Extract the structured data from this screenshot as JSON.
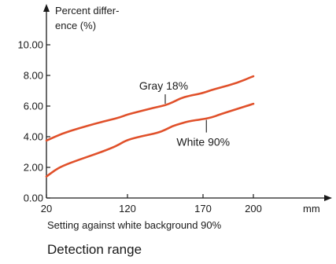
{
  "chart_data": {
    "type": "line",
    "title": "",
    "ylabel_lines": [
      "Percent differ-",
      "ence (%)"
    ],
    "xlabel": "Setting against white background 90%",
    "caption": "Detection range",
    "x_unit": "mm",
    "xlim": [
      20,
      200
    ],
    "ylim": [
      0,
      10
    ],
    "x_ticks": [
      {
        "value": 20,
        "label": "20"
      },
      {
        "value": 120,
        "label": "120"
      },
      {
        "value": 170,
        "label": "170"
      },
      {
        "value": 200,
        "label": "200"
      }
    ],
    "y_ticks": [
      {
        "value": 0,
        "label": "0.00"
      },
      {
        "value": 2,
        "label": "2.00"
      },
      {
        "value": 4,
        "label": "4.00"
      },
      {
        "value": 6,
        "label": "6.00"
      },
      {
        "value": 8,
        "label": "8.00"
      },
      {
        "value": 10,
        "label": "10.00"
      }
    ],
    "grid": false,
    "series_color": "#e0502a",
    "series": [
      {
        "name": "Gray 18%",
        "x": [
          20,
          40,
          60,
          80,
          100,
          110,
          120,
          130,
          140,
          145,
          150,
          155,
          160,
          170,
          175,
          180,
          190,
          200
        ],
        "y": [
          3.75,
          4.22,
          4.55,
          4.85,
          5.12,
          5.25,
          5.45,
          5.7,
          5.95,
          6.05,
          6.25,
          6.5,
          6.65,
          6.85,
          7.05,
          7.2,
          7.5,
          7.95
        ]
      },
      {
        "name": "White 90%",
        "x": [
          20,
          30,
          40,
          60,
          80,
          100,
          110,
          120,
          130,
          140,
          145,
          150,
          155,
          160,
          170,
          175,
          180,
          190,
          200
        ],
        "y": [
          1.4,
          1.8,
          2.1,
          2.5,
          2.85,
          3.25,
          3.5,
          3.8,
          4.05,
          4.25,
          4.45,
          4.7,
          4.85,
          5.0,
          5.15,
          5.25,
          5.45,
          5.8,
          6.15
        ]
      }
    ],
    "annotations": [
      {
        "series": "Gray 18%",
        "text": "Gray 18%",
        "x": 145,
        "y": 6.05
      },
      {
        "series": "White 90%",
        "text": "White 90%",
        "x": 172,
        "y": 5.2
      }
    ]
  }
}
